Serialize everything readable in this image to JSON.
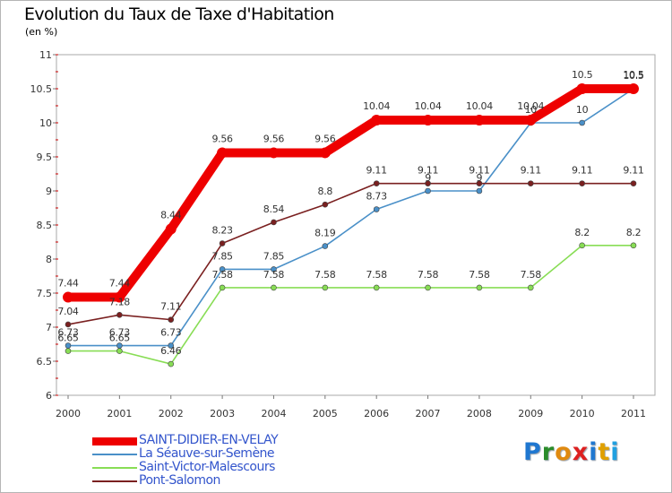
{
  "title": "Evolution du Taux de Taxe d'Habitation",
  "subtitle": "(en %)",
  "logo": {
    "letters": [
      "P",
      "r",
      "o",
      "x",
      "i",
      "t",
      "i"
    ],
    "colors": [
      "#1f77d0",
      "#2a8c2a",
      "#e08a10",
      "#dd2020",
      "#1f77d0",
      "#e0a000",
      "#20a0e0"
    ]
  },
  "chart_data": {
    "type": "line",
    "title": "Evolution du Taux de Taxe d'Habitation",
    "ylabel": "(en %)",
    "xlabel": "",
    "x": [
      "2000",
      "2001",
      "2002",
      "2003",
      "2004",
      "2005",
      "2006",
      "2007",
      "2008",
      "2009",
      "2010",
      "2011"
    ],
    "ylim": [
      6,
      11
    ],
    "yticks": [
      "6",
      "6.5",
      "7",
      "7.5",
      "8",
      "8.5",
      "9",
      "9.5",
      "10",
      "10.5",
      "11"
    ],
    "grid": false,
    "legend_position": "bottom-left",
    "series": [
      {
        "name": "SAINT-DIDIER-EN-VELAY",
        "color": "#ee0000",
        "values": [
          7.44,
          7.44,
          8.44,
          9.56,
          9.56,
          9.56,
          10.04,
          10.04,
          10.04,
          10.04,
          10.5,
          10.5
        ],
        "labels": [
          "7.44",
          "7.44",
          "8.44",
          "9.56",
          "9.56",
          "9.56",
          "10.04",
          "10.04",
          "10.04",
          "10.04",
          "10.5",
          "10.5"
        ]
      },
      {
        "name": "La Séauve-sur-Semène",
        "color": "#4a90c8",
        "values": [
          6.73,
          6.73,
          6.73,
          7.85,
          7.85,
          8.19,
          8.73,
          9,
          9,
          10,
          10,
          10.5
        ],
        "labels": [
          "6.73",
          "6.73",
          "6.73",
          "7.85",
          "7.85",
          "8.19",
          "8.73",
          "9",
          "9",
          "10",
          "10",
          "10.5"
        ]
      },
      {
        "name": "Saint-Victor-Malescours",
        "color": "#88dd55",
        "values": [
          6.65,
          6.65,
          6.46,
          7.58,
          7.58,
          7.58,
          7.58,
          7.58,
          7.58,
          7.58,
          8.2,
          8.2
        ],
        "labels": [
          "6.65",
          "6.65",
          "6.46",
          "7.58",
          "7.58",
          "7.58",
          "7.58",
          "7.58",
          "7.58",
          "7.58",
          "8.2",
          "8.2"
        ]
      },
      {
        "name": "Pont-Salomon",
        "color": "#7a2020",
        "values": [
          7.04,
          7.18,
          7.11,
          8.23,
          8.54,
          8.8,
          9.11,
          9.11,
          9.11,
          9.11,
          9.11,
          9.11
        ],
        "labels": [
          "7.04",
          "7.18",
          "7.11",
          "8.23",
          "8.54",
          "8.8",
          "9.11",
          "9.11",
          "9.11",
          "9.11",
          "9.11",
          "9.11"
        ]
      }
    ]
  }
}
